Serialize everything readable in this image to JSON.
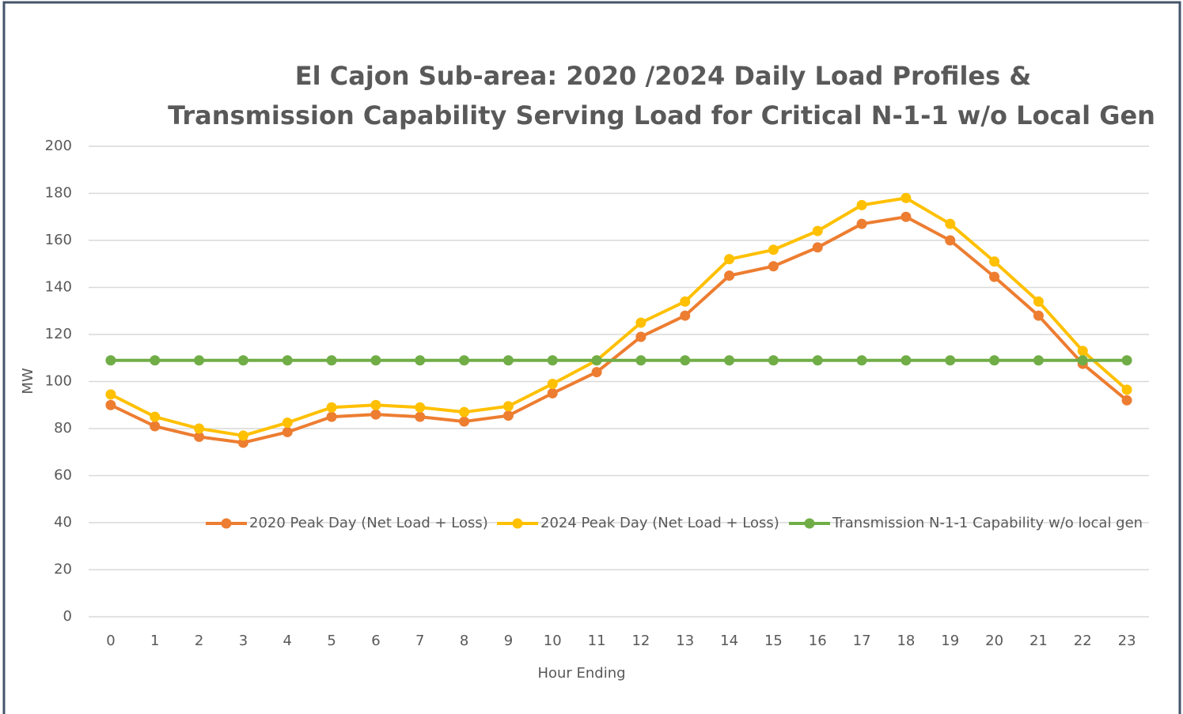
{
  "chart_data": {
    "type": "line",
    "title": "El Cajon Sub-area: 2020 /2024 Daily Load Profiles &",
    "subtitle": "Transmission Capability Serving Load for Critical N-1-1 w/o Local Gen",
    "x_label": "Hour Ending",
    "y_label": "MW",
    "categories": [
      0,
      1,
      2,
      3,
      4,
      5,
      6,
      7,
      8,
      9,
      10,
      11,
      12,
      13,
      14,
      15,
      16,
      17,
      18,
      19,
      20,
      21,
      22,
      23
    ],
    "series": [
      {
        "name": "2020 Peak Day (Net Load + Loss)",
        "color": "#ed7d31",
        "values": [
          90,
          81,
          76.5,
          74,
          78.5,
          85,
          86,
          85,
          83,
          85.5,
          95,
          104,
          119,
          128,
          145,
          149,
          157,
          167,
          170,
          160,
          144.5,
          128,
          107.5,
          92
        ]
      },
      {
        "name": "2024 Peak Day (Net Load + Loss)",
        "color": "#ffc000",
        "values": [
          94.5,
          85,
          80,
          77,
          82.5,
          89,
          90,
          89,
          87,
          89.5,
          99,
          109,
          125,
          134,
          152,
          156,
          164,
          175,
          178,
          167,
          151,
          134,
          113,
          96.5
        ]
      },
      {
        "name": "Transmission N-1-1 Capability w/o local gen",
        "color": "#70ad47",
        "values": [
          109,
          109,
          109,
          109,
          109,
          109,
          109,
          109,
          109,
          109,
          109,
          109,
          109,
          109,
          109,
          109,
          109,
          109,
          109,
          109,
          109,
          109,
          109,
          109
        ]
      }
    ],
    "ylim": [
      0,
      200
    ],
    "yticks": [
      0,
      20,
      40,
      60,
      80,
      100,
      120,
      140,
      160,
      180,
      200
    ],
    "grid": true,
    "legend": "center"
  }
}
